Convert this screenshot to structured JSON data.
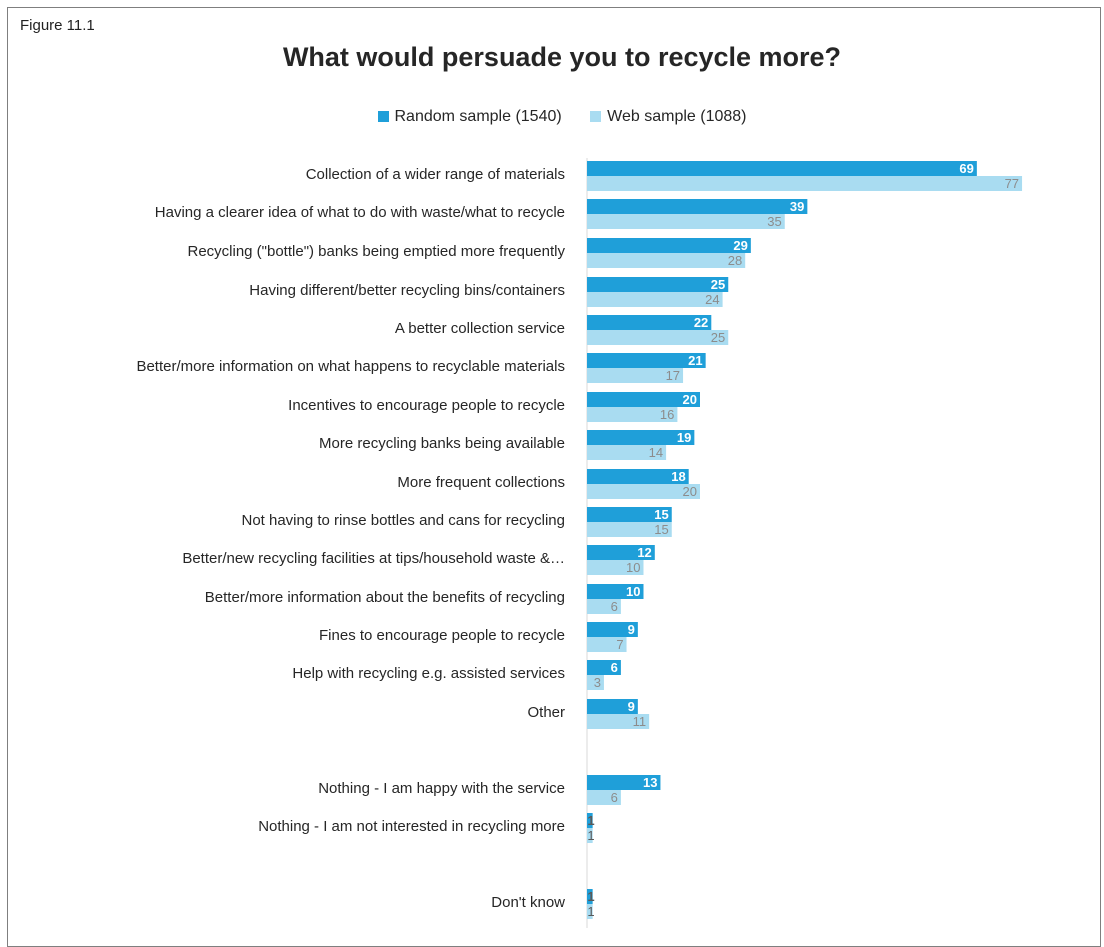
{
  "figure_label": "Figure 11.1",
  "chart_data": {
    "type": "bar",
    "orientation": "horizontal",
    "title": "What would persuade you to recycle more?",
    "xlabel": "",
    "ylabel": "",
    "xlim": [
      0,
      80
    ],
    "grid": false,
    "legend_position": "top",
    "categories": [
      "Collection of a wider range of materials",
      "Having a clearer idea of what to do with waste/what to recycle",
      "Recycling (\"bottle\") banks being emptied more frequently",
      "Having different/better recycling bins/containers",
      "A better collection service",
      "Better/more information on what happens to recyclable materials",
      "Incentives to encourage people to recycle",
      "More recycling banks being available",
      "More frequent collections",
      "Not having to rinse bottles and cans for recycling",
      "Better/new recycling facilities at tips/household waste &…",
      "Better/more information about the benefits of recycling",
      "Fines to encourage people to recycle",
      "Help with recycling e.g. assisted services",
      "Other",
      "Nothing - I am happy with the service",
      "Nothing - I am not interested in recycling more",
      "Don't know"
    ],
    "series": [
      {
        "name": "Random sample (1540)",
        "color": "#1f9fd9",
        "label_color": "#ffffff",
        "values": [
          69,
          39,
          29,
          25,
          22,
          21,
          20,
          19,
          18,
          15,
          12,
          10,
          9,
          6,
          9,
          13,
          1,
          1
        ]
      },
      {
        "name": "Web sample (1088)",
        "color": "#a9dcf1",
        "label_color": "#8c8c8c",
        "values": [
          77,
          35,
          28,
          24,
          25,
          17,
          16,
          14,
          20,
          15,
          10,
          6,
          7,
          3,
          11,
          6,
          1,
          1
        ]
      }
    ]
  }
}
